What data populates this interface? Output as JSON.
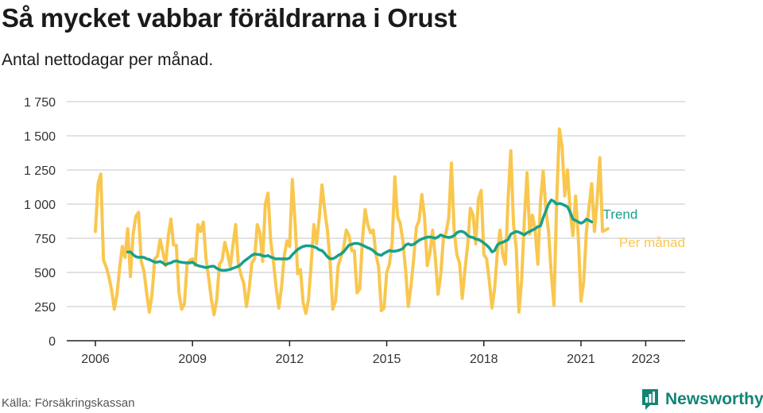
{
  "header": {
    "title": "Så mycket vabbar föräldrarna i Orust",
    "subtitle": "Antal nettodagar per månad."
  },
  "footer": {
    "source": "Källa: Försäkringskassan",
    "brand": "Newsworthy"
  },
  "colors": {
    "monthly": "#f9c74f",
    "trend": "#17a08c",
    "grid": "#d9d9d9",
    "axis": "#222222",
    "brand": "#138575"
  },
  "chart_data": {
    "type": "line",
    "title": "Så mycket vabbar föräldrarna i Orust",
    "subtitle": "Antal nettodagar per månad.",
    "y_ticks": [
      0,
      250,
      500,
      750,
      1000,
      1250,
      1500,
      1750
    ],
    "y_tick_labels": [
      "0",
      "250",
      "500",
      "750",
      "1 000",
      "1 250",
      "1 500",
      "1 750"
    ],
    "ylim": [
      0,
      1750
    ],
    "x_ticks": [
      2006,
      2009,
      2012,
      2015,
      2018,
      2021,
      2023
    ],
    "x_tick_labels": [
      "2006",
      "2009",
      "2012",
      "2015",
      "2018",
      "2021",
      "2023"
    ],
    "xlim": [
      "2006-01",
      "2023-05"
    ],
    "grid": true,
    "legend": "right-end labels",
    "series": [
      {
        "name": "Per månad",
        "start": "2006-01",
        "values": [
          800,
          1150,
          1220,
          590,
          540,
          470,
          370,
          230,
          340,
          530,
          690,
          610,
          820,
          470,
          780,
          910,
          940,
          580,
          510,
          350,
          210,
          340,
          600,
          620,
          740,
          650,
          550,
          760,
          890,
          700,
          700,
          350,
          230,
          270,
          560,
          590,
          600,
          550,
          850,
          800,
          870,
          600,
          460,
          300,
          190,
          300,
          560,
          590,
          720,
          640,
          540,
          700,
          850,
          560,
          480,
          420,
          250,
          380,
          570,
          600,
          850,
          790,
          580,
          1000,
          1080,
          730,
          580,
          390,
          240,
          390,
          620,
          730,
          690,
          1180,
          870,
          490,
          520,
          280,
          200,
          300,
          560,
          850,
          710,
          900,
          1140,
          960,
          810,
          580,
          230,
          290,
          550,
          610,
          680,
          810,
          770,
          660,
          660,
          350,
          380,
          740,
          960,
          850,
          790,
          810,
          630,
          540,
          220,
          240,
          500,
          560,
          720,
          1200,
          910,
          860,
          730,
          520,
          250,
          400,
          600,
          830,
          880,
          1070,
          910,
          550,
          640,
          810,
          610,
          340,
          480,
          750,
          790,
          900,
          1300,
          810,
          630,
          570,
          310,
          520,
          700,
          970,
          920,
          710,
          1040,
          1100,
          630,
          600,
          440,
          240,
          380,
          640,
          810,
          630,
          560,
          1040,
          1390,
          850,
          680,
          210,
          440,
          880,
          1230,
          780,
          920,
          810,
          560,
          1020,
          1240,
          960,
          800,
          490,
          260,
          1020,
          1550,
          1420,
          1060,
          1250,
          940,
          770,
          1060,
          760,
          290,
          430,
          800,
          980,
          1150,
          800,
          1030,
          1340,
          800,
          810,
          820
        ]
      },
      {
        "name": "Trend",
        "start": "2007-01",
        "values": [
          650,
          650,
          630,
          615,
          610,
          612,
          610,
          600,
          595,
          585,
          575,
          575,
          580,
          570,
          555,
          565,
          570,
          580,
          585,
          578,
          574,
          572,
          570,
          570,
          575,
          560,
          550,
          545,
          540,
          535,
          540,
          545,
          545,
          530,
          520,
          515,
          515,
          518,
          522,
          530,
          538,
          545,
          560,
          580,
          595,
          610,
          625,
          635,
          632,
          630,
          622,
          618,
          624,
          612,
          605,
          598,
          600,
          598,
          600,
          598,
          605,
          630,
          650,
          668,
          680,
          690,
          695,
          695,
          693,
          688,
          680,
          665,
          660,
          640,
          615,
          600,
          600,
          610,
          625,
          635,
          650,
          675,
          700,
          705,
          712,
          712,
          708,
          700,
          690,
          680,
          672,
          660,
          640,
          630,
          625,
          640,
          650,
          660,
          655,
          655,
          660,
          665,
          675,
          700,
          710,
          700,
          705,
          720,
          735,
          745,
          752,
          758,
          760,
          755,
          750,
          760,
          775,
          765,
          760,
          755,
          760,
          770,
          790,
          800,
          800,
          790,
          770,
          760,
          755,
          745,
          740,
          730,
          715,
          700,
          680,
          650,
          660,
          700,
          715,
          720,
          730,
          740,
          780,
          790,
          800,
          795,
          785,
          775,
          790,
          800,
          810,
          820,
          835,
          840,
          900,
          950,
          1000,
          1030,
          1020,
          1000,
          1005,
          1000,
          990,
          980,
          940,
          890,
          880,
          870,
          860,
          870,
          890,
          880,
          870
        ]
      }
    ]
  }
}
